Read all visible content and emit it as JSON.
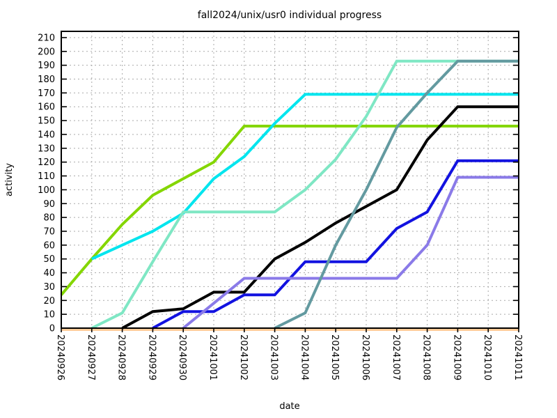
{
  "title": "fall2024/unix/usr0 individual progress",
  "chart_data": {
    "type": "line",
    "title": "fall2024/unix/usr0 individual progress",
    "xlabel": "date",
    "ylabel": "activity",
    "ylim": [
      0,
      210
    ],
    "ytick_step": 10,
    "grid": "dashed",
    "legend_position": "none",
    "line_width": 4,
    "x": [
      "20240926",
      "20240927",
      "20240928",
      "20240929",
      "20240930",
      "20241001",
      "20241002",
      "20241003",
      "20241004",
      "20241005",
      "20241006",
      "20241007",
      "20241008",
      "20241009",
      "20241010",
      "20241011"
    ],
    "series": [
      {
        "name": "orange",
        "color": "#ffcc99",
        "offset_y": 2,
        "values": [
          0,
          0,
          0,
          0,
          0,
          0,
          0,
          0,
          0,
          0,
          0,
          0,
          0,
          0,
          0,
          0
        ]
      },
      {
        "name": "green",
        "color": "#84d600",
        "offset_y": 0,
        "values": [
          24,
          50,
          75,
          96,
          108,
          120,
          146,
          146,
          146,
          146,
          146,
          146,
          146,
          146,
          146,
          146
        ]
      },
      {
        "name": "cyan",
        "color": "#00e5ee",
        "offset_y": 0,
        "values": [
          null,
          50,
          60,
          70,
          83,
          108,
          124,
          148,
          169,
          169,
          169,
          169,
          169,
          169,
          169,
          169
        ]
      },
      {
        "name": "aquamarine",
        "color": "#7fe7c4",
        "offset_y": 0,
        "values": [
          null,
          0,
          11,
          48,
          84,
          84,
          84,
          84,
          100,
          122,
          153,
          193,
          193,
          193,
          193,
          193
        ]
      },
      {
        "name": "black",
        "color": "#000000",
        "offset_y": 0,
        "values": [
          null,
          null,
          0,
          12,
          14,
          26,
          26,
          50,
          62,
          76,
          88,
          100,
          136,
          160,
          160,
          160
        ]
      },
      {
        "name": "blue",
        "color": "#1212e0",
        "offset_y": 0,
        "values": [
          null,
          null,
          null,
          0,
          12,
          12,
          24,
          24,
          48,
          48,
          48,
          72,
          84,
          121,
          121,
          121
        ]
      },
      {
        "name": "purple",
        "color": "#8a7ae8",
        "offset_y": 0,
        "values": [
          null,
          null,
          null,
          null,
          0,
          18,
          36,
          36,
          36,
          36,
          36,
          36,
          60,
          109,
          109,
          109
        ]
      },
      {
        "name": "slate-gray",
        "color": "#639aa0",
        "offset_y": 0,
        "values": [
          null,
          null,
          null,
          null,
          null,
          null,
          null,
          0,
          11,
          60,
          100,
          145,
          170,
          193,
          193,
          193
        ]
      }
    ]
  }
}
